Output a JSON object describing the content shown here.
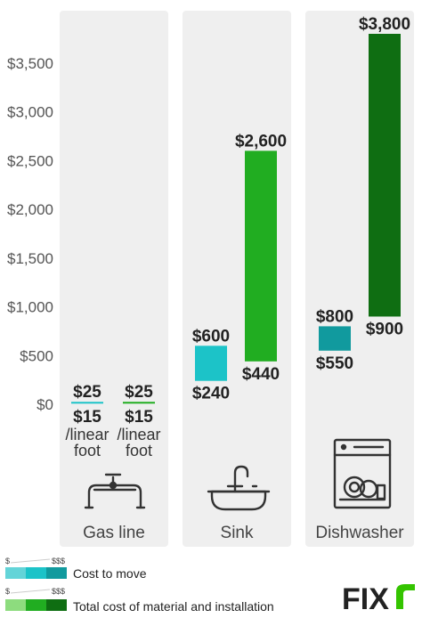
{
  "chart_data": {
    "type": "bar",
    "subtype": "floating-range",
    "categories": [
      "Gas line",
      "Sink",
      "Dishwasher"
    ],
    "ylim": [
      0,
      3800
    ],
    "yticks": [
      0,
      500,
      1000,
      1500,
      2000,
      2500,
      3000,
      3500
    ],
    "ytick_labels": [
      "$0",
      "$500",
      "$1,000",
      "$1,500",
      "$2,000",
      "$2,500",
      "$3,000",
      "$3,500"
    ],
    "grid": false,
    "series": [
      {
        "name": "Cost to move",
        "ranges": [
          {
            "low": 15,
            "high": 25,
            "low_label": "$15",
            "high_label": "$25",
            "unit_line1": "/linear",
            "unit_line2": "foot"
          },
          {
            "low": 240,
            "high": 600,
            "low_label": "$240",
            "high_label": "$600"
          },
          {
            "low": 550,
            "high": 800,
            "low_label": "$550",
            "high_label": "$800"
          }
        ]
      },
      {
        "name": "Total cost of material and installation",
        "ranges": [
          {
            "low": 15,
            "high": 25,
            "low_label": "$15",
            "high_label": "$25",
            "unit_line1": "/linear",
            "unit_line2": "foot"
          },
          {
            "low": 440,
            "high": 2600,
            "low_label": "$440",
            "high_label": "$2,600"
          },
          {
            "low": 900,
            "high": 3800,
            "low_label": "$900",
            "high_label": "$3,800"
          }
        ]
      }
    ],
    "legend_position": "bottom-left",
    "legend_scale_low": "$",
    "legend_scale_high": "$$$",
    "colors": {
      "cost_to_move": [
        "#63d4d8",
        "#1cc3c8",
        "#119a9e"
      ],
      "total_cost": [
        "#8ddc7e",
        "#21ad21",
        "#0f6e12"
      ],
      "column_bg": "#efefef"
    },
    "icons": [
      "gas-pipe-icon",
      "sink-icon",
      "dishwasher-icon"
    ]
  },
  "logo": {
    "text": "FIX",
    "accent_color": "#34c400"
  }
}
